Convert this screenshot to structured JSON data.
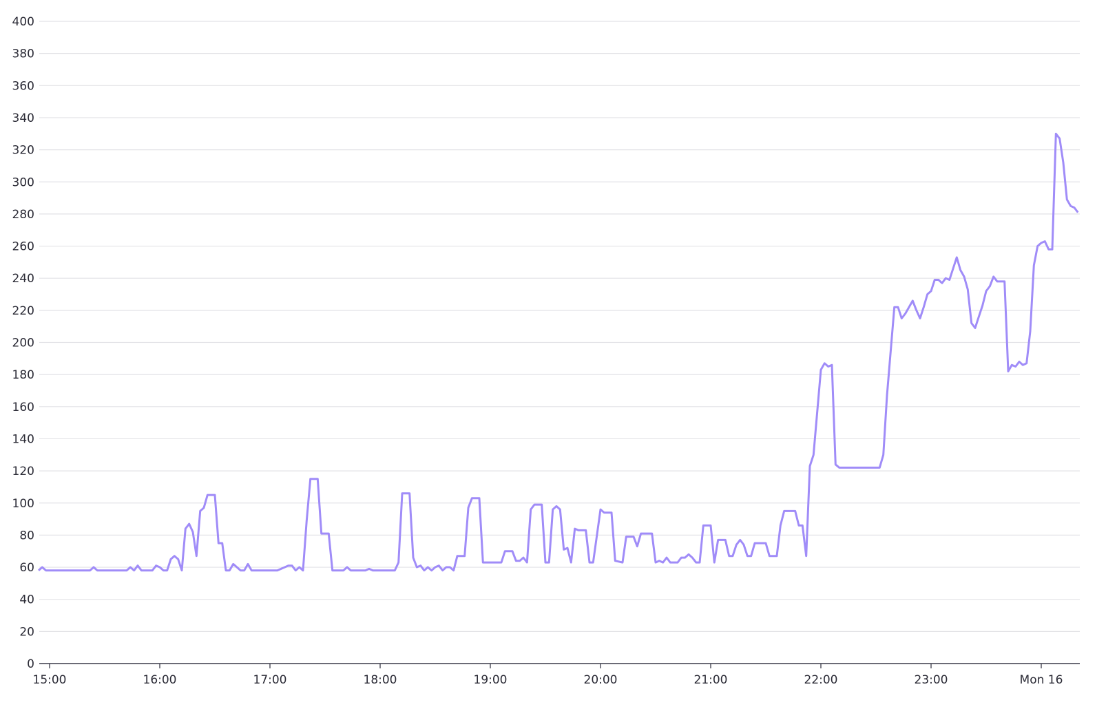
{
  "chart_data": {
    "type": "line",
    "title": "",
    "xlabel": "",
    "ylabel": "",
    "ylim": [
      0,
      400
    ],
    "xlim": [
      "14:54",
      "00:20"
    ],
    "grid": true,
    "line_color": "#a08cf8",
    "y_ticks": [
      "0",
      "20",
      "40",
      "60",
      "80",
      "100",
      "120",
      "140",
      "160",
      "180",
      "200",
      "220",
      "240",
      "260",
      "280",
      "300",
      "320",
      "340",
      "360",
      "380",
      "400"
    ],
    "x_ticks": [
      {
        "time": "15:00",
        "label": "15:00"
      },
      {
        "time": "16:00",
        "label": "16:00"
      },
      {
        "time": "17:00",
        "label": "17:00"
      },
      {
        "time": "18:00",
        "label": "18:00"
      },
      {
        "time": "19:00",
        "label": "19:00"
      },
      {
        "time": "20:00",
        "label": "20:00"
      },
      {
        "time": "21:00",
        "label": "21:00"
      },
      {
        "time": "22:00",
        "label": "22:00"
      },
      {
        "time": "23:00",
        "label": "23:00"
      },
      {
        "time": "00:00",
        "label": "Mon 16"
      }
    ],
    "series": [
      {
        "x": [
          "14:54",
          "14:56",
          "14:58",
          "15:22",
          "15:24",
          "15:26",
          "15:42",
          "15:44",
          "15:46",
          "15:48",
          "15:50",
          "15:56",
          "15:58",
          "16:00",
          "16:02",
          "16:04",
          "16:06",
          "16:08",
          "16:10",
          "16:12",
          "16:14",
          "16:16",
          "16:18",
          "16:20",
          "16:22",
          "16:24",
          "16:26",
          "16:30",
          "16:32",
          "16:34",
          "16:36",
          "16:38",
          "16:40",
          "16:42",
          "16:44",
          "16:46",
          "16:48",
          "16:50",
          "17:04",
          "17:10",
          "17:12",
          "17:14",
          "17:16",
          "17:18",
          "17:20",
          "17:22",
          "17:26",
          "17:28",
          "17:32",
          "17:34",
          "17:40",
          "17:42",
          "17:44",
          "17:52",
          "17:54",
          "17:56",
          "18:08",
          "18:10",
          "18:12",
          "18:16",
          "18:18",
          "18:20",
          "18:22",
          "18:24",
          "18:26",
          "18:28",
          "18:30",
          "18:32",
          "18:34",
          "18:36",
          "18:38",
          "18:40",
          "18:42",
          "18:46",
          "18:48",
          "18:50",
          "18:54",
          "18:56",
          "19:06",
          "19:08",
          "19:12",
          "19:14",
          "19:16",
          "19:18",
          "19:20",
          "19:22",
          "19:24",
          "19:28",
          "19:30",
          "19:32",
          "19:34",
          "19:36",
          "19:38",
          "19:40",
          "19:42",
          "19:44",
          "19:46",
          "19:48",
          "19:52",
          "19:54",
          "19:56",
          "20:00",
          "20:02",
          "20:06",
          "20:08",
          "20:12",
          "20:14",
          "20:18",
          "20:20",
          "20:22",
          "20:28",
          "20:30",
          "20:32",
          "20:34",
          "20:36",
          "20:38",
          "20:42",
          "20:44",
          "20:46",
          "20:48",
          "20:50",
          "20:52",
          "20:54",
          "20:56",
          "21:00",
          "21:02",
          "21:04",
          "21:08",
          "21:10",
          "21:12",
          "21:14",
          "21:16",
          "21:18",
          "21:20",
          "21:22",
          "21:24",
          "21:30",
          "21:32",
          "21:36",
          "21:38",
          "21:40",
          "21:46",
          "21:48",
          "21:50",
          "21:52",
          "21:54",
          "21:56",
          "22:00",
          "22:02",
          "22:04",
          "22:06",
          "22:08",
          "22:10",
          "22:32",
          "22:34",
          "22:36",
          "22:40",
          "22:42",
          "22:44",
          "22:46",
          "22:50",
          "22:52",
          "22:54",
          "22:56",
          "22:58",
          "23:00",
          "23:02",
          "23:04",
          "23:06",
          "23:08",
          "23:10",
          "23:12",
          "23:14",
          "23:16",
          "23:18",
          "23:20",
          "23:22",
          "23:24",
          "23:26",
          "23:28",
          "23:30",
          "23:32",
          "23:34",
          "23:36",
          "23:40",
          "23:42",
          "23:44",
          "23:46",
          "23:48",
          "23:50",
          "23:52",
          "23:54",
          "23:56",
          "23:58",
          "00:00",
          "00:02",
          "00:04",
          "00:06",
          "00:08",
          "00:10",
          "00:12",
          "00:14",
          "00:16",
          "00:18",
          "00:20"
        ],
        "values": [
          58,
          60,
          58,
          58,
          60,
          58,
          58,
          60,
          58,
          61,
          58,
          58,
          61,
          60,
          58,
          58,
          65,
          67,
          65,
          58,
          84,
          87,
          82,
          67,
          95,
          97,
          105,
          105,
          75,
          75,
          58,
          58,
          62,
          60,
          58,
          58,
          62,
          58,
          58,
          61,
          61,
          58,
          60,
          58,
          89,
          115,
          115,
          81,
          81,
          58,
          58,
          60,
          58,
          58,
          59,
          58,
          58,
          63,
          106,
          106,
          66,
          60,
          61,
          58,
          60,
          58,
          60,
          61,
          58,
          60,
          60,
          58,
          67,
          67,
          97,
          103,
          103,
          63,
          63,
          70,
          70,
          64,
          64,
          66,
          63,
          96,
          99,
          99,
          63,
          63,
          96,
          98,
          96,
          71,
          72,
          63,
          84,
          83,
          83,
          63,
          63,
          96,
          94,
          94,
          64,
          63,
          79,
          79,
          73,
          81,
          81,
          63,
          64,
          63,
          66,
          63,
          63,
          66,
          66,
          68,
          66,
          63,
          63,
          86,
          86,
          63,
          77,
          77,
          67,
          67,
          74,
          77,
          74,
          67,
          67,
          75,
          75,
          67,
          67,
          86,
          95,
          95,
          86,
          86,
          67,
          123,
          130,
          183,
          187,
          185,
          186,
          124,
          122,
          122,
          130,
          167,
          222,
          222,
          215,
          218,
          226,
          220,
          215,
          222,
          230,
          232,
          239,
          239,
          237,
          240,
          239,
          246,
          253,
          245,
          241,
          233,
          212,
          209,
          216,
          223,
          232,
          235,
          241,
          238,
          238,
          182,
          186,
          185,
          188,
          186,
          187,
          207,
          248,
          260,
          262,
          263,
          258,
          258,
          330,
          327,
          312,
          289,
          285,
          284,
          281
        ]
      }
    ]
  }
}
